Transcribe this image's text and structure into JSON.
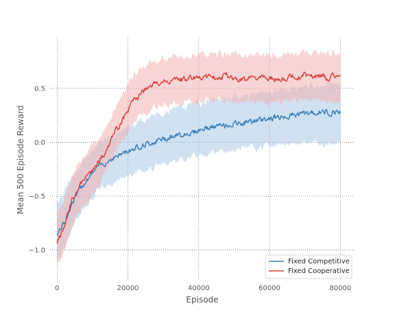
{
  "chart_data": {
    "type": "line",
    "xlabel": "Episode",
    "ylabel": "Mean 500 Episode Reward",
    "xlim": [
      -2000,
      84000
    ],
    "ylim": [
      -1.27,
      0.97
    ],
    "xticks": [
      0,
      20000,
      40000,
      60000,
      80000
    ],
    "xtick_labels": [
      "0",
      "20000",
      "40000",
      "60000",
      "80000"
    ],
    "yticks": [
      -1.0,
      -0.5,
      0.0,
      0.5
    ],
    "ytick_labels": [
      "−1.0",
      "−0.5",
      "0.0",
      "0.5"
    ],
    "grid": true,
    "legend_position": "lower-right",
    "series": [
      {
        "name": "Fixed Competitive",
        "color": "#3a7fba",
        "band_color": "#a9c9e6",
        "x": [
          0,
          2000,
          4000,
          6000,
          8000,
          10000,
          12000,
          14000,
          16000,
          18000,
          20000,
          22000,
          24000,
          26000,
          28000,
          30000,
          32000,
          34000,
          36000,
          38000,
          40000,
          42000,
          44000,
          46000,
          48000,
          50000,
          52000,
          54000,
          56000,
          58000,
          60000,
          62000,
          64000,
          66000,
          68000,
          70000,
          72000,
          74000,
          76000,
          78000,
          80000
        ],
        "y": [
          -0.85,
          -0.75,
          -0.58,
          -0.46,
          -0.36,
          -0.28,
          -0.22,
          -0.18,
          -0.14,
          -0.11,
          -0.08,
          -0.05,
          -0.03,
          -0.01,
          0.01,
          0.03,
          0.05,
          0.06,
          0.08,
          0.09,
          0.11,
          0.13,
          0.14,
          0.15,
          0.16,
          0.17,
          0.18,
          0.19,
          0.2,
          0.21,
          0.22,
          0.23,
          0.24,
          0.25,
          0.26,
          0.27,
          0.27,
          0.28,
          0.28,
          0.28,
          0.29
        ],
        "lower": [
          -1.1,
          -0.98,
          -0.8,
          -0.68,
          -0.58,
          -0.5,
          -0.44,
          -0.4,
          -0.37,
          -0.34,
          -0.31,
          -0.28,
          -0.26,
          -0.24,
          -0.22,
          -0.2,
          -0.18,
          -0.17,
          -0.15,
          -0.14,
          -0.12,
          -0.1,
          -0.09,
          -0.08,
          -0.08,
          -0.07,
          -0.06,
          -0.05,
          -0.05,
          -0.04,
          -0.03,
          -0.03,
          -0.02,
          -0.02,
          -0.01,
          -0.01,
          -0.01,
          0.0,
          -0.01,
          0.0,
          0.0
        ],
        "upper": [
          -0.55,
          -0.45,
          -0.34,
          -0.24,
          -0.14,
          -0.06,
          0.0,
          0.03,
          0.07,
          0.1,
          0.14,
          0.18,
          0.21,
          0.23,
          0.26,
          0.28,
          0.3,
          0.32,
          0.34,
          0.35,
          0.36,
          0.38,
          0.39,
          0.4,
          0.41,
          0.42,
          0.43,
          0.44,
          0.45,
          0.46,
          0.47,
          0.48,
          0.49,
          0.5,
          0.51,
          0.52,
          0.52,
          0.53,
          0.54,
          0.54,
          0.55
        ]
      },
      {
        "name": "Fixed Cooperative",
        "color": "#d84141",
        "band_color": "#f2b3b3",
        "x": [
          0,
          2000,
          4000,
          6000,
          8000,
          10000,
          12000,
          14000,
          16000,
          18000,
          20000,
          22000,
          24000,
          26000,
          28000,
          30000,
          32000,
          34000,
          36000,
          38000,
          40000,
          42000,
          44000,
          46000,
          48000,
          50000,
          52000,
          54000,
          56000,
          58000,
          60000,
          62000,
          64000,
          66000,
          68000,
          70000,
          72000,
          74000,
          76000,
          78000,
          80000
        ],
        "y": [
          -0.93,
          -0.78,
          -0.55,
          -0.42,
          -0.33,
          -0.25,
          -0.17,
          -0.08,
          0.08,
          0.18,
          0.3,
          0.4,
          0.46,
          0.51,
          0.54,
          0.56,
          0.57,
          0.58,
          0.59,
          0.6,
          0.6,
          0.61,
          0.6,
          0.61,
          0.62,
          0.6,
          0.58,
          0.59,
          0.6,
          0.6,
          0.59,
          0.58,
          0.59,
          0.61,
          0.6,
          0.63,
          0.61,
          0.62,
          0.6,
          0.61,
          0.6
        ],
        "lower": [
          -1.15,
          -1.0,
          -0.8,
          -0.66,
          -0.56,
          -0.47,
          -0.38,
          -0.28,
          -0.12,
          -0.01,
          0.1,
          0.2,
          0.26,
          0.3,
          0.33,
          0.35,
          0.36,
          0.37,
          0.38,
          0.38,
          0.38,
          0.39,
          0.38,
          0.38,
          0.38,
          0.37,
          0.36,
          0.36,
          0.37,
          0.37,
          0.36,
          0.36,
          0.37,
          0.38,
          0.38,
          0.39,
          0.38,
          0.39,
          0.38,
          0.38,
          0.38
        ],
        "upper": [
          -0.65,
          -0.52,
          -0.34,
          -0.2,
          -0.1,
          -0.02,
          0.05,
          0.14,
          0.3,
          0.42,
          0.54,
          0.64,
          0.69,
          0.73,
          0.76,
          0.78,
          0.79,
          0.8,
          0.81,
          0.81,
          0.81,
          0.82,
          0.81,
          0.82,
          0.83,
          0.82,
          0.8,
          0.81,
          0.82,
          0.82,
          0.81,
          0.8,
          0.81,
          0.83,
          0.82,
          0.84,
          0.83,
          0.84,
          0.82,
          0.83,
          0.82
        ]
      }
    ]
  }
}
